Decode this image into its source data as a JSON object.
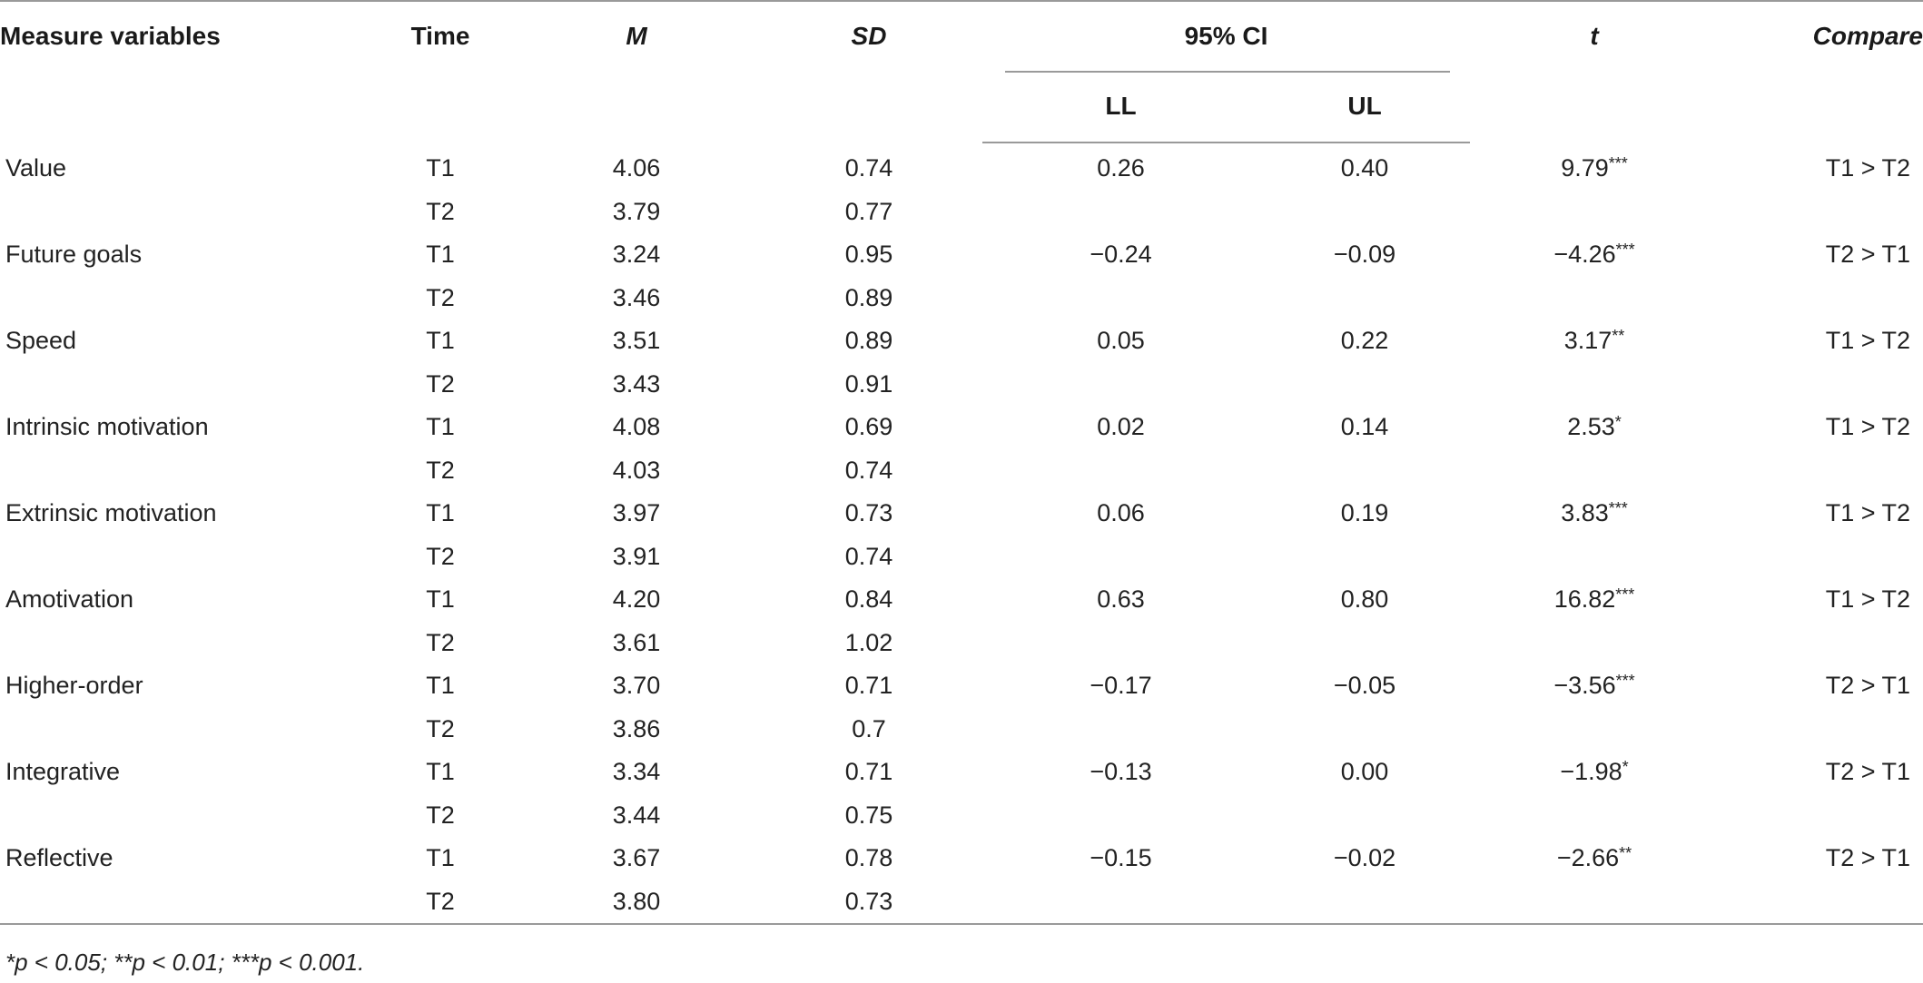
{
  "table": {
    "headers": {
      "measure": "Measure variables",
      "time": "Time",
      "m": "M",
      "sd": "SD",
      "ci": "95% CI",
      "ll": "LL",
      "ul": "UL",
      "t": "t",
      "compare": "Compare"
    },
    "rows": [
      {
        "measure": "Value",
        "t1": {
          "time": "T1",
          "m": "4.06",
          "sd": "0.74"
        },
        "t2": {
          "time": "T2",
          "m": "3.79",
          "sd": "0.77"
        },
        "ll": "0.26",
        "ul": "0.40",
        "t": "9.79",
        "stars": "***",
        "compare": "T1 > T2"
      },
      {
        "measure": "Future goals",
        "t1": {
          "time": "T1",
          "m": "3.24",
          "sd": "0.95"
        },
        "t2": {
          "time": "T2",
          "m": "3.46",
          "sd": "0.89"
        },
        "ll": "−0.24",
        "ul": "−0.09",
        "t": "−4.26",
        "stars": "***",
        "compare": "T2 > T1"
      },
      {
        "measure": "Speed",
        "t1": {
          "time": "T1",
          "m": "3.51",
          "sd": "0.89"
        },
        "t2": {
          "time": "T2",
          "m": "3.43",
          "sd": "0.91"
        },
        "ll": "0.05",
        "ul": "0.22",
        "t": "3.17",
        "stars": "**",
        "compare": "T1 > T2"
      },
      {
        "measure": "Intrinsic motivation",
        "t1": {
          "time": "T1",
          "m": "4.08",
          "sd": "0.69"
        },
        "t2": {
          "time": "T2",
          "m": "4.03",
          "sd": "0.74"
        },
        "ll": "0.02",
        "ul": "0.14",
        "t": "2.53",
        "stars": "*",
        "compare": "T1 > T2"
      },
      {
        "measure": "Extrinsic motivation",
        "t1": {
          "time": "T1",
          "m": "3.97",
          "sd": "0.73"
        },
        "t2": {
          "time": "T2",
          "m": "3.91",
          "sd": "0.74"
        },
        "ll": "0.06",
        "ul": "0.19",
        "t": "3.83",
        "stars": "***",
        "compare": "T1 > T2"
      },
      {
        "measure": "Amotivation",
        "t1": {
          "time": "T1",
          "m": "4.20",
          "sd": "0.84"
        },
        "t2": {
          "time": "T2",
          "m": "3.61",
          "sd": "1.02"
        },
        "ll": "0.63",
        "ul": "0.80",
        "t": "16.82",
        "stars": "***",
        "compare": "T1 > T2"
      },
      {
        "measure": "Higher-order",
        "t1": {
          "time": "T1",
          "m": "3.70",
          "sd": "0.71"
        },
        "t2": {
          "time": "T2",
          "m": "3.86",
          "sd": "0.7"
        },
        "ll": "−0.17",
        "ul": "−0.05",
        "t": "−3.56",
        "stars": "***",
        "compare": "T2 > T1"
      },
      {
        "measure": "Integrative",
        "t1": {
          "time": "T1",
          "m": "3.34",
          "sd": "0.71"
        },
        "t2": {
          "time": "T2",
          "m": "3.44",
          "sd": "0.75"
        },
        "ll": "−0.13",
        "ul": "0.00",
        "t": "−1.98",
        "stars": "*",
        "compare": "T2 > T1"
      },
      {
        "measure": "Reflective",
        "t1": {
          "time": "T1",
          "m": "3.67",
          "sd": "0.78"
        },
        "t2": {
          "time": "T2",
          "m": "3.80",
          "sd": "0.73"
        },
        "ll": "−0.15",
        "ul": "−0.02",
        "t": "−2.66",
        "stars": "**",
        "compare": "T2 > T1"
      }
    ],
    "footnote": "*p < 0.05; **p < 0.01; ***p < 0.001."
  }
}
